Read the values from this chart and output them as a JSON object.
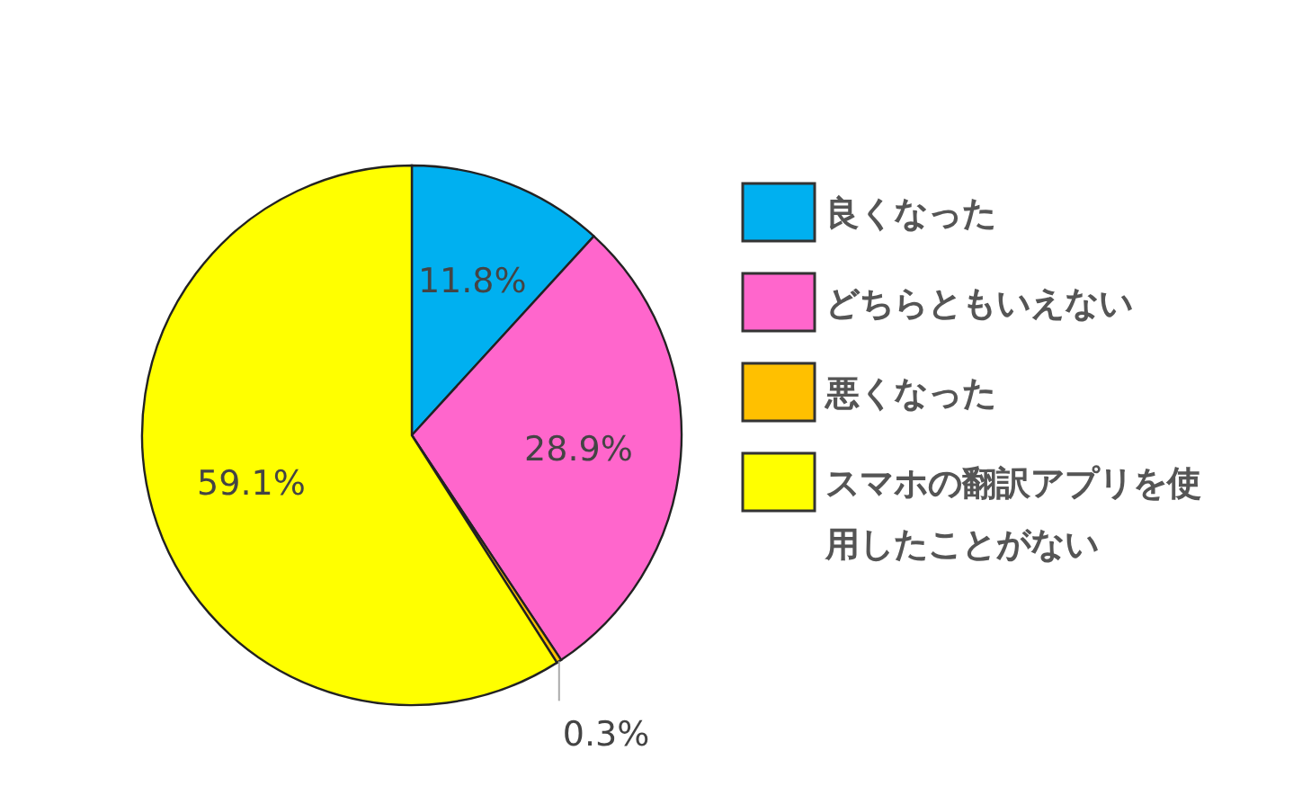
{
  "chart_data": {
    "type": "pie",
    "categories": [
      "良くなった",
      "どちらともいえない",
      "悪くなった",
      "スマホの翻訳アプリを使用したことがない"
    ],
    "values": [
      11.8,
      28.9,
      0.3,
      59.1
    ],
    "colors": [
      "#00b0f0",
      "#ff66cc",
      "#ffc000",
      "#ffff00"
    ],
    "value_labels": [
      "11.8%",
      "28.9%",
      "0.3%",
      "59.1%"
    ],
    "legend": "right"
  }
}
